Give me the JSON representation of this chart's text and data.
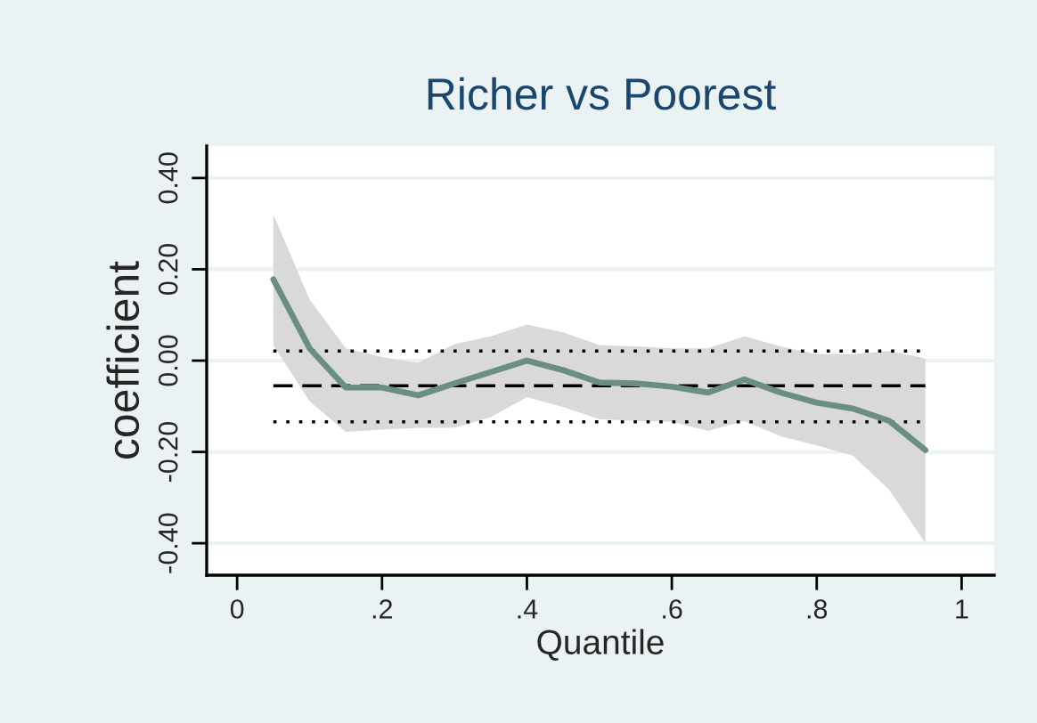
{
  "chart_data": {
    "type": "line",
    "title": "Richer vs Poorest",
    "xlabel": "Quantile",
    "ylabel": "coefficient",
    "xlim": [
      -0.042,
      1.045
    ],
    "ylim": [
      -0.47,
      0.47
    ],
    "xticks": [
      0,
      {
        "value": 0.2,
        "label": ".2"
      },
      {
        "value": 0.4,
        "label": ".4"
      },
      {
        "value": 0.6,
        "label": ".6"
      },
      {
        "value": 0.8,
        "label": ".8"
      },
      1
    ],
    "yticks": [
      {
        "value": -0.4,
        "label": "-0.40"
      },
      {
        "value": -0.2,
        "label": "-0.20"
      },
      {
        "value": 0,
        "label": "0.00"
      },
      {
        "value": 0.2,
        "label": "0.20"
      },
      {
        "value": 0.4,
        "label": "0.40"
      }
    ],
    "grid": "y",
    "marker": "none",
    "series": [
      {
        "color": "#6a8f80",
        "line_style": "solid",
        "x": [
          0.05,
          0.1,
          0.15,
          0.2,
          0.25,
          0.3,
          0.35,
          0.4,
          0.45,
          0.5,
          0.55,
          0.6,
          0.65,
          0.7,
          0.75,
          0.8,
          0.85,
          0.9,
          0.95
        ],
        "values": [
          0.178,
          0.027,
          -0.059,
          -0.059,
          -0.076,
          -0.05,
          -0.025,
          0.0,
          -0.021,
          -0.048,
          -0.05,
          -0.057,
          -0.07,
          -0.041,
          -0.07,
          -0.092,
          -0.105,
          -0.132,
          -0.196
        ],
        "upper": [
          0.32,
          0.134,
          0.027,
          0.008,
          -0.005,
          0.036,
          0.053,
          0.079,
          0.062,
          0.034,
          0.031,
          0.027,
          0.027,
          0.053,
          0.031,
          0.014,
          0.014,
          0.021,
          0.005
        ],
        "lower": [
          0.034,
          -0.089,
          -0.156,
          -0.151,
          -0.147,
          -0.147,
          -0.124,
          -0.08,
          -0.102,
          -0.128,
          -0.132,
          -0.134,
          -0.154,
          -0.132,
          -0.166,
          -0.186,
          -0.208,
          -0.283,
          -0.4
        ]
      },
      {
        "color": "#000000",
        "line_style": "dashed",
        "x": [
          0.05,
          0.95
        ],
        "values": [
          -0.055,
          -0.055
        ]
      },
      {
        "color": "#000000",
        "line_style": "dotted",
        "x": [
          0.05,
          0.95
        ],
        "values": [
          0.021,
          0.021
        ]
      },
      {
        "color": "#000000",
        "line_style": "dotted",
        "x": [
          0.05,
          0.95
        ],
        "values": [
          -0.134,
          -0.134
        ]
      }
    ]
  }
}
